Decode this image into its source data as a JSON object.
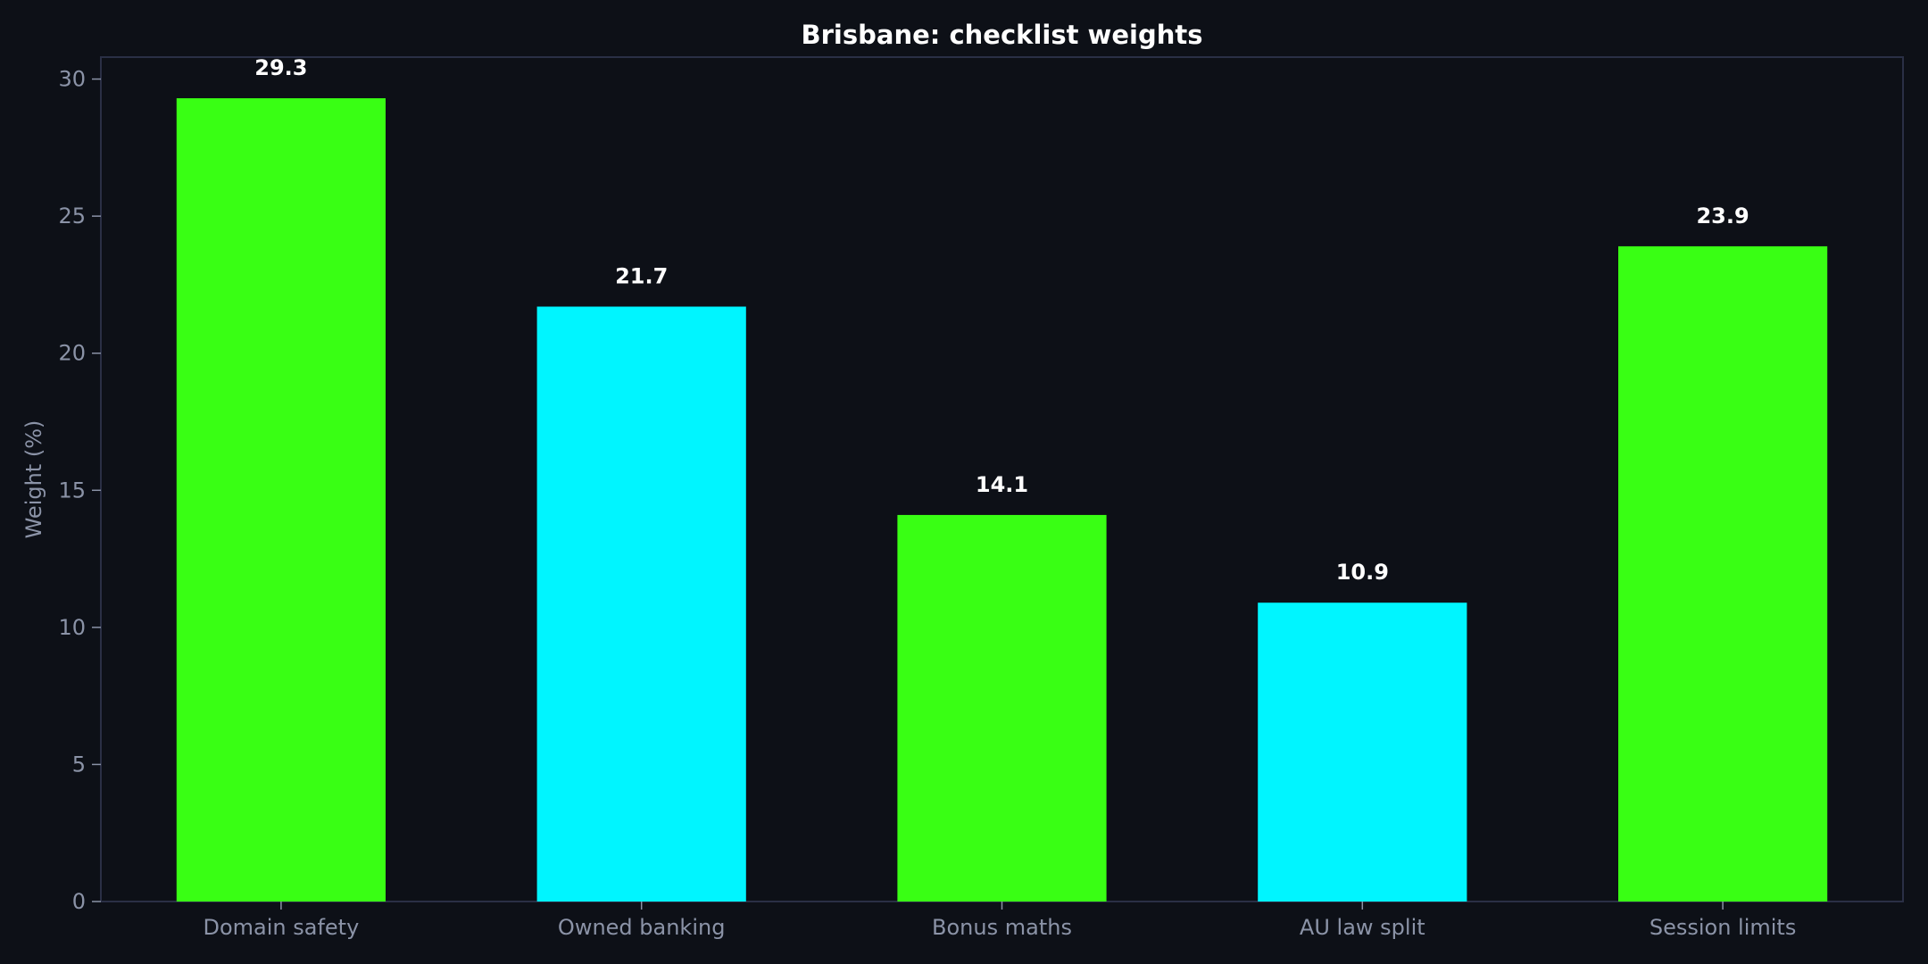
{
  "chart_data": {
    "type": "bar",
    "title": "Brisbane: checklist weights",
    "xlabel": "",
    "ylabel": "Weight (%)",
    "categories": [
      "Domain safety",
      "Owned banking",
      "Bonus maths",
      "AU law split",
      "Session limits"
    ],
    "values": [
      29.3,
      21.7,
      14.1,
      10.9,
      23.9
    ],
    "value_labels": [
      "29.3",
      "21.7",
      "14.1",
      "10.9",
      "23.9"
    ],
    "bar_colors": [
      "#39ff14",
      "#00f5ff",
      "#39ff14",
      "#00f5ff",
      "#39ff14"
    ],
    "ylim": [
      0,
      30.8
    ],
    "yticks": [
      0,
      5,
      10,
      15,
      20,
      25,
      30
    ],
    "grid": false,
    "legend": "none",
    "colors": {
      "background": "#0d1017",
      "axes_frame": "#2a2f45",
      "tick_text": "#8b93a7",
      "title_text": "#ffffff",
      "value_label_text": "#ffffff"
    }
  }
}
